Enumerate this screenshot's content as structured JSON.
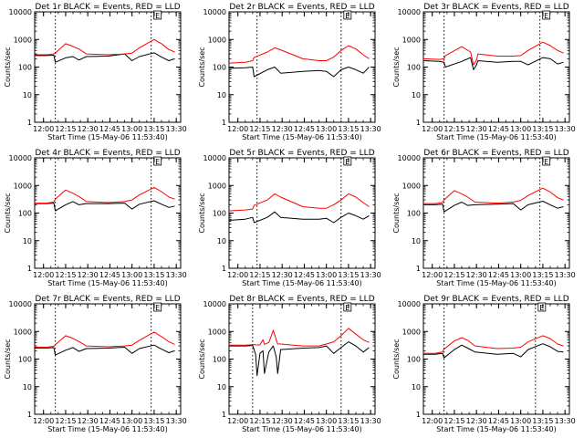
{
  "figure": {
    "colors": {
      "events": "#000000",
      "lld": "#ff0000",
      "axes": "#000000",
      "background": "#ffffff"
    }
  },
  "chart_data": [
    {
      "type": "line",
      "title": "Det 1r BLACK = Events, RED = LLD",
      "xlabel": "Start Time (15-May-06 11:53:40)",
      "ylabel": "Counts/sec",
      "xticks": [
        "12:00",
        "12:15",
        "12:30",
        "12:45",
        "13:00",
        "13:15",
        "13:30"
      ],
      "yticks": [
        "1",
        "10",
        "100",
        "1000",
        "10000"
      ],
      "yscale": "log",
      "ylim": [
        1,
        10000
      ],
      "flag": "E",
      "vlines": [
        "12:08",
        "13:13"
      ],
      "x": [
        "11:54",
        "12:02",
        "12:07",
        "12:08",
        "12:15",
        "12:20",
        "12:24",
        "12:29",
        "12:44",
        "12:55",
        "13:00",
        "13:05",
        "13:15",
        "13:20",
        "13:25",
        "13:29"
      ],
      "series": [
        {
          "name": "Events",
          "color": "#000000",
          "values": [
            260,
            260,
            270,
            150,
            215,
            240,
            180,
            240,
            250,
            300,
            170,
            240,
            330,
            230,
            170,
            200
          ]
        },
        {
          "name": "LLD",
          "color": "#ff0000",
          "values": [
            280,
            280,
            300,
            320,
            700,
            560,
            450,
            300,
            280,
            300,
            320,
            500,
            1000,
            700,
            430,
            350
          ]
        }
      ]
    },
    {
      "type": "line",
      "title": "Det 2r BLACK = Events, RED = LLD",
      "xlabel": "Start Time (15-May-06 11:53:40)",
      "ylabel": "Counts/sec",
      "xticks": [
        "12:00",
        "12:15",
        "12:30",
        "12:45",
        "13:00",
        "13:15",
        "13:30"
      ],
      "yticks": [
        "1",
        "10",
        "100",
        "1000",
        "10000"
      ],
      "yscale": "log",
      "ylim": [
        1,
        10000
      ],
      "flag": "E",
      "vlines": [
        "12:13",
        "13:10"
      ],
      "x": [
        "11:54",
        "12:05",
        "12:10",
        "12:11",
        "12:20",
        "12:25",
        "12:29",
        "12:44",
        "12:55",
        "13:00",
        "13:05",
        "13:10",
        "13:15",
        "13:20",
        "13:25",
        "13:29"
      ],
      "series": [
        {
          "name": "Events",
          "color": "#000000",
          "values": [
            90,
            95,
            100,
            45,
            80,
            100,
            60,
            70,
            75,
            70,
            45,
            80,
            100,
            80,
            60,
            100
          ]
        },
        {
          "name": "LLD",
          "color": "#ff0000",
          "values": [
            140,
            150,
            170,
            220,
            350,
            500,
            420,
            200,
            170,
            170,
            230,
            400,
            600,
            450,
            280,
            200
          ]
        }
      ]
    },
    {
      "type": "line",
      "title": "Det 3r BLACK = Events, RED = LLD",
      "xlabel": "Start Time (15-May-06 11:53:40)",
      "ylabel": "Counts/sec",
      "xticks": [
        "12:00",
        "12:15",
        "12:30",
        "12:45",
        "13:00",
        "13:15",
        "13:30"
      ],
      "yticks": [
        "1",
        "10",
        "100",
        "1000",
        "10000"
      ],
      "yscale": "log",
      "ylim": [
        1,
        10000
      ],
      "flag": "E",
      "vlines": [
        "12:08",
        "13:13"
      ],
      "x": [
        "11:54",
        "12:05",
        "12:08",
        "12:09",
        "12:20",
        "12:26",
        "12:28",
        "12:30",
        "12:31",
        "12:44",
        "12:55",
        "13:00",
        "13:05",
        "13:15",
        "13:20",
        "13:25",
        "13:29"
      ],
      "series": [
        {
          "name": "Events",
          "color": "#000000",
          "values": [
            170,
            160,
            150,
            100,
            160,
            220,
            80,
            120,
            170,
            150,
            160,
            160,
            120,
            220,
            200,
            130,
            150
          ]
        },
        {
          "name": "LLD",
          "color": "#ff0000",
          "values": [
            200,
            190,
            200,
            260,
            550,
            350,
            120,
            180,
            300,
            250,
            250,
            260,
            400,
            800,
            600,
            400,
            320
          ]
        }
      ]
    },
    {
      "type": "line",
      "title": "Det 4r BLACK = Events, RED = LLD",
      "xlabel": "Start Time (15-May-06 11:53:40)",
      "ylabel": "Counts/sec",
      "xticks": [
        "12:00",
        "12:15",
        "12:30",
        "12:45",
        "13:00",
        "13:15",
        "13:30"
      ],
      "yticks": [
        "1",
        "10",
        "100",
        "1000",
        "10000"
      ],
      "yscale": "log",
      "ylim": [
        1,
        10000
      ],
      "flag": "E",
      "vlines": [
        "12:08",
        "13:13"
      ],
      "x": [
        "11:54",
        "12:02",
        "12:07",
        "12:08",
        "12:15",
        "12:20",
        "12:24",
        "12:29",
        "12:44",
        "12:55",
        "13:00",
        "13:05",
        "13:15",
        "13:20",
        "13:25",
        "13:29"
      ],
      "series": [
        {
          "name": "Events",
          "color": "#000000",
          "values": [
            220,
            220,
            230,
            120,
            200,
            260,
            200,
            220,
            220,
            230,
            140,
            210,
            280,
            210,
            160,
            180
          ]
        },
        {
          "name": "LLD",
          "color": "#ff0000",
          "values": [
            230,
            230,
            250,
            320,
            680,
            520,
            400,
            260,
            240,
            260,
            300,
            450,
            850,
            600,
            380,
            320
          ]
        }
      ]
    },
    {
      "type": "line",
      "title": "Det 5r BLACK = Events, RED = LLD",
      "xlabel": "Start Time (15-May-06 11:53:40)",
      "ylabel": "Counts/sec",
      "xticks": [
        "12:00",
        "12:15",
        "12:30",
        "12:45",
        "13:00",
        "13:15",
        "13:30"
      ],
      "yticks": [
        "1",
        "10",
        "100",
        "1000",
        "10000"
      ],
      "yscale": "log",
      "ylim": [
        1,
        10000
      ],
      "flag": "E",
      "vlines": [
        "12:13",
        "13:10"
      ],
      "x": [
        "11:54",
        "12:05",
        "12:10",
        "12:11",
        "12:20",
        "12:25",
        "12:29",
        "12:44",
        "12:55",
        "13:00",
        "13:05",
        "13:10",
        "13:15",
        "13:20",
        "13:25",
        "13:29"
      ],
      "series": [
        {
          "name": "Events",
          "color": "#000000",
          "values": [
            55,
            60,
            70,
            45,
            70,
            110,
            70,
            60,
            60,
            65,
            45,
            70,
            100,
            80,
            60,
            80
          ]
        },
        {
          "name": "LLD",
          "color": "#ff0000",
          "values": [
            120,
            130,
            140,
            190,
            300,
            500,
            380,
            170,
            150,
            150,
            200,
            300,
            500,
            380,
            240,
            170
          ]
        }
      ]
    },
    {
      "type": "line",
      "title": "Det 6r BLACK = Events, RED = LLD",
      "xlabel": "Start Time (15-May-06 11:53:40)",
      "ylabel": "Counts/sec",
      "xticks": [
        "12:00",
        "12:15",
        "12:30",
        "12:45",
        "13:00",
        "13:15",
        "13:30"
      ],
      "yticks": [
        "1",
        "10",
        "100",
        "1000",
        "10000"
      ],
      "yscale": "log",
      "ylim": [
        1,
        10000
      ],
      "flag": "E",
      "vlines": [
        "12:08",
        "13:13"
      ],
      "x": [
        "11:54",
        "12:02",
        "12:07",
        "12:08",
        "12:15",
        "12:20",
        "12:24",
        "12:29",
        "12:44",
        "12:55",
        "13:00",
        "13:05",
        "13:15",
        "13:20",
        "13:25",
        "13:29"
      ],
      "series": [
        {
          "name": "Events",
          "color": "#000000",
          "values": [
            200,
            200,
            210,
            110,
            190,
            250,
            190,
            200,
            210,
            220,
            130,
            200,
            270,
            200,
            150,
            170
          ]
        },
        {
          "name": "LLD",
          "color": "#ff0000",
          "values": [
            220,
            220,
            240,
            300,
            650,
            500,
            380,
            250,
            230,
            250,
            290,
            430,
            800,
            580,
            360,
            300
          ]
        }
      ]
    },
    {
      "type": "line",
      "title": "Det 7r BLACK = Events, RED = LLD",
      "xlabel": "Start Time (15-May-06 11:53:40)",
      "ylabel": "Counts/sec",
      "xticks": [
        "12:00",
        "12:15",
        "12:30",
        "12:45",
        "13:00",
        "13:15",
        "13:30"
      ],
      "yticks": [
        "1",
        "10",
        "100",
        "1000",
        "10000"
      ],
      "yscale": "log",
      "ylim": [
        1,
        10000
      ],
      "flag": "E",
      "vlines": [
        "12:08",
        "13:13"
      ],
      "x": [
        "11:54",
        "12:02",
        "12:07",
        "12:08",
        "12:15",
        "12:20",
        "12:24",
        "12:29",
        "12:44",
        "12:55",
        "13:00",
        "13:05",
        "13:15",
        "13:20",
        "13:25",
        "13:29"
      ],
      "series": [
        {
          "name": "Events",
          "color": "#000000",
          "values": [
            250,
            250,
            260,
            140,
            210,
            260,
            190,
            240,
            250,
            270,
            160,
            240,
            320,
            230,
            170,
            200
          ]
        },
        {
          "name": "LLD",
          "color": "#ff0000",
          "values": [
            270,
            270,
            290,
            330,
            700,
            560,
            430,
            300,
            280,
            300,
            320,
            480,
            950,
            650,
            420,
            340
          ]
        }
      ]
    },
    {
      "type": "line",
      "title": "Det 8r BLACK = Events, RED = LLD",
      "xlabel": "Start Time (15-May-06 11:53:40)",
      "ylabel": "Counts/sec",
      "xticks": [
        "12:00",
        "12:15",
        "12:30",
        "12:45",
        "13:00",
        "13:15",
        "13:30"
      ],
      "yticks": [
        "1",
        "10",
        "100",
        "1000",
        "10000"
      ],
      "yscale": "log",
      "ylim": [
        1,
        10000
      ],
      "flag": "E",
      "vlines": [
        "12:10",
        "13:10"
      ],
      "x": [
        "11:54",
        "12:05",
        "12:10",
        "12:12",
        "12:13",
        "12:15",
        "12:17",
        "12:18",
        "12:21",
        "12:24",
        "12:26",
        "12:27",
        "12:29",
        "12:44",
        "12:55",
        "13:00",
        "13:05",
        "13:10",
        "13:15",
        "13:20",
        "13:25",
        "13:29"
      ],
      "series": [
        {
          "name": "Events",
          "color": "#000000",
          "values": [
            300,
            300,
            310,
            150,
            25,
            160,
            200,
            30,
            180,
            300,
            120,
            30,
            220,
            250,
            260,
            300,
            160,
            260,
            420,
            300,
            180,
            260
          ]
        },
        {
          "name": "LLD",
          "color": "#ff0000",
          "values": [
            320,
            320,
            330,
            330,
            320,
            330,
            500,
            340,
            400,
            1100,
            500,
            350,
            350,
            300,
            300,
            350,
            420,
            700,
            1300,
            800,
            500,
            400
          ]
        }
      ]
    },
    {
      "type": "line",
      "title": "Det 9r BLACK = Events, RED = LLD",
      "xlabel": "Start Time (15-May-06 11:53:40)",
      "ylabel": "Counts/sec",
      "xticks": [
        "12:00",
        "12:15",
        "12:30",
        "12:45",
        "13:00",
        "13:15",
        "13:30"
      ],
      "yticks": [
        "1",
        "10",
        "100",
        "1000",
        "10000"
      ],
      "yscale": "log",
      "ylim": [
        1,
        10000
      ],
      "flag": "E",
      "vlines": [
        "12:08",
        "13:10"
      ],
      "x": [
        "11:54",
        "12:02",
        "12:07",
        "12:08",
        "12:15",
        "12:20",
        "12:24",
        "12:29",
        "12:44",
        "12:55",
        "13:00",
        "13:05",
        "13:15",
        "13:20",
        "13:25",
        "13:29"
      ],
      "series": [
        {
          "name": "Events",
          "color": "#000000",
          "values": [
            150,
            150,
            160,
            110,
            220,
            320,
            250,
            180,
            150,
            160,
            120,
            220,
            360,
            280,
            190,
            180
          ]
        },
        {
          "name": "LLD",
          "color": "#ff0000",
          "values": [
            160,
            160,
            180,
            230,
            450,
            600,
            480,
            300,
            240,
            250,
            270,
            420,
            700,
            550,
            350,
            300
          ]
        }
      ]
    }
  ]
}
